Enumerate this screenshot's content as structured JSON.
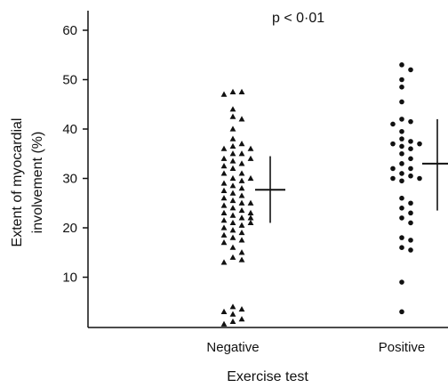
{
  "chart_data": {
    "type": "scatter",
    "title": "",
    "annotation": "p < 0·01",
    "xlabel": "Exercise test",
    "ylabel_lines": [
      "Extent of myocardial",
      "involvement (%)"
    ],
    "ylim": [
      0,
      65
    ],
    "yticks": [
      10,
      20,
      30,
      40,
      50,
      60
    ],
    "grid": false,
    "categories": [
      "Negative",
      "Positive"
    ],
    "series": [
      {
        "category": "Negative",
        "marker": "triangle",
        "values": [
          47.5,
          47.5,
          47,
          44,
          42.5,
          42,
          40,
          38,
          37,
          36.5,
          36,
          36,
          35,
          35,
          34,
          34,
          33.5,
          33,
          32.5,
          32,
          31,
          31,
          30,
          30,
          29.5,
          29,
          28.5,
          28,
          27.5,
          27,
          26.5,
          26,
          25.5,
          25,
          25,
          24.5,
          24,
          23.5,
          23,
          23,
          22.5,
          22,
          22,
          21.5,
          21,
          21,
          20.5,
          20,
          19.5,
          19,
          18.5,
          18,
          17.5,
          17,
          16,
          15,
          14,
          13.5,
          13,
          4,
          3.5,
          3,
          2.5,
          1.5,
          1,
          0.5
        ]
      },
      {
        "category": "Positive",
        "marker": "circle",
        "values": [
          53,
          52,
          50,
          48.5,
          45.5,
          42,
          41.5,
          41,
          39.5,
          38,
          37.5,
          37,
          37,
          36.5,
          36,
          35,
          34,
          33,
          32,
          32,
          31,
          30.5,
          30,
          30,
          29.5,
          26,
          25,
          24,
          23,
          22,
          21,
          18,
          17.5,
          16,
          15.5,
          9,
          3
        ]
      }
    ],
    "summary_bars": [
      {
        "category": "Negative",
        "mean": 27.7,
        "low": 21,
        "high": 34.5
      },
      {
        "category": "Positive",
        "mean": 33,
        "low": 23.5,
        "high": 42
      }
    ]
  }
}
